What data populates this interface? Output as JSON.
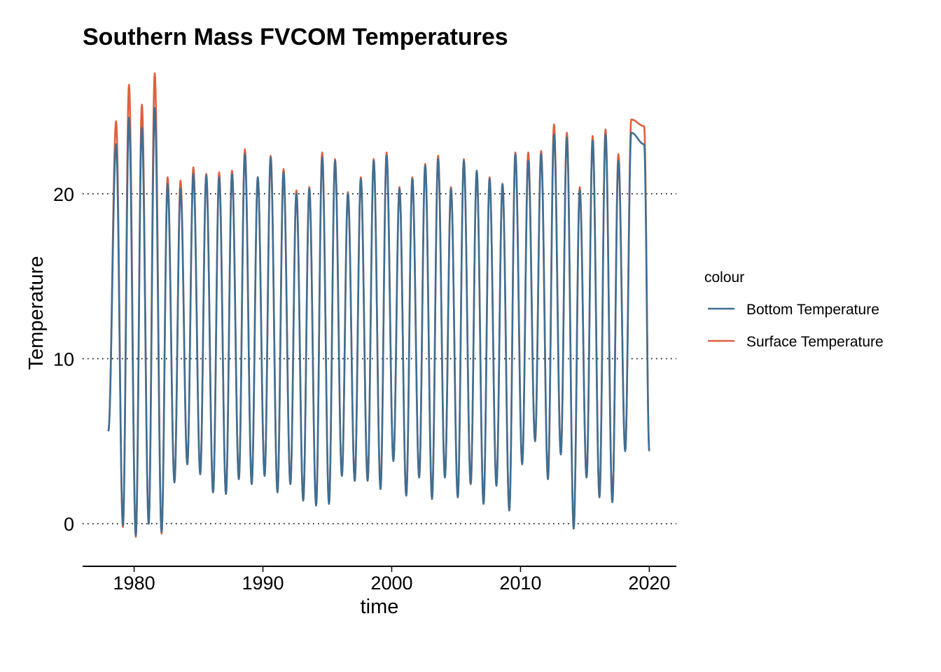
{
  "chart_data": {
    "type": "line",
    "title": "Southern Mass FVCOM Temperatures",
    "xlabel": "time",
    "ylabel": "Temperature",
    "x_ticks": [
      1980,
      1990,
      2000,
      2010,
      2020
    ],
    "y_ticks": [
      0,
      10,
      20
    ],
    "xlim": [
      1976.0,
      2022.1
    ],
    "ylim": [
      -2.2,
      27.5
    ],
    "grid": "horizontal dotted",
    "legend": {
      "title": "colour",
      "position": "right"
    },
    "series": [
      {
        "name": "Bottom Temperature",
        "color": "#3f6f93",
        "peaks": [
          23.0,
          24.6,
          24.0,
          25.2,
          20.6,
          20.3,
          21.2,
          21.1,
          21.0,
          21.2,
          22.4,
          21.0,
          22.2,
          21.3,
          20.0,
          20.3,
          22.2,
          22.0,
          20.0,
          20.9,
          22.0,
          22.3,
          20.3,
          20.9,
          21.7,
          22.1,
          20.3,
          22.0,
          21.4,
          20.9,
          20.6,
          22.4,
          22.0,
          22.4,
          23.6,
          23.4,
          20.2,
          23.2,
          23.6,
          22.0,
          23.7,
          23.0
        ],
        "troughs": [
          5.6,
          -0.1,
          -0.7,
          0.0,
          -0.5,
          2.5,
          3.6,
          3.0,
          1.9,
          1.8,
          2.7,
          2.4,
          2.9,
          1.9,
          2.4,
          1.4,
          1.1,
          1.2,
          2.9,
          2.6,
          2.6,
          2.1,
          3.8,
          1.7,
          2.8,
          1.5,
          2.8,
          1.6,
          2.4,
          1.2,
          2.3,
          0.8,
          3.6,
          5.0,
          2.7,
          4.2,
          -0.3,
          2.8,
          1.6,
          1.3,
          4.4
        ],
        "end": 4.4
      },
      {
        "name": "Surface Temperature",
        "color": "#e0603f",
        "peaks": [
          24.4,
          26.6,
          25.4,
          27.3,
          21.0,
          20.8,
          21.6,
          21.2,
          21.3,
          21.4,
          22.7,
          21.0,
          22.3,
          21.5,
          20.2,
          20.4,
          22.5,
          22.1,
          20.1,
          21.0,
          22.1,
          22.5,
          20.4,
          21.0,
          21.8,
          22.3,
          20.4,
          22.1,
          21.3,
          21.0,
          20.6,
          22.5,
          22.5,
          22.6,
          24.2,
          23.7,
          20.4,
          23.5,
          23.9,
          22.4,
          24.5,
          24.1
        ],
        "troughs": [
          5.6,
          -0.2,
          -0.8,
          0.0,
          -0.6,
          2.5,
          3.6,
          3.0,
          1.9,
          1.8,
          2.7,
          2.4,
          2.9,
          1.9,
          2.4,
          1.4,
          1.1,
          1.2,
          2.9,
          2.6,
          2.6,
          2.1,
          3.8,
          1.7,
          2.8,
          1.5,
          2.8,
          1.6,
          2.4,
          1.2,
          2.3,
          0.8,
          3.6,
          5.0,
          2.7,
          4.2,
          -0.3,
          2.8,
          1.6,
          1.3,
          4.4
        ],
        "end": 4.4
      }
    ],
    "start_year": 1978.0,
    "end_year": 2020.0,
    "peak_phase": 0.6,
    "trough_phase": 0.13
  }
}
